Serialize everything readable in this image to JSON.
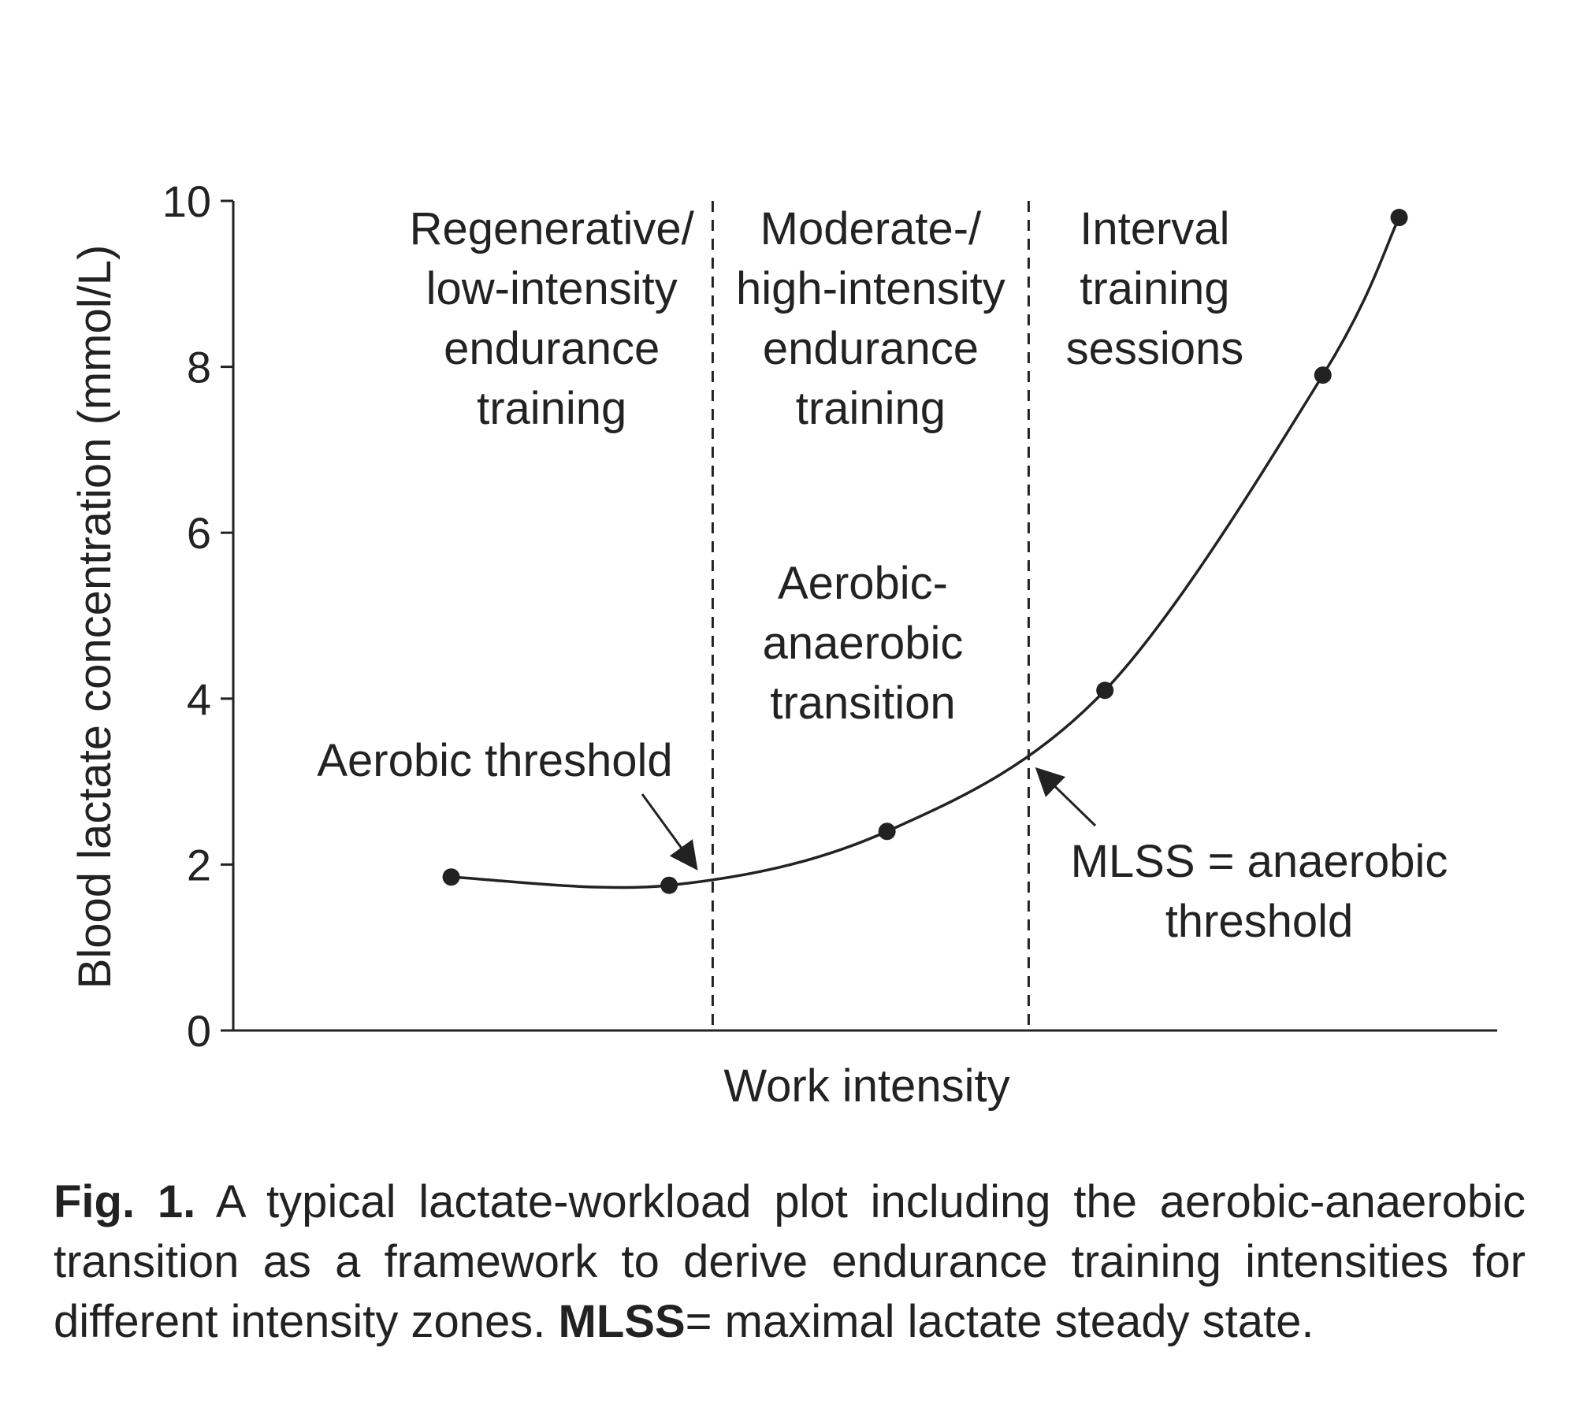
{
  "chart_data": {
    "type": "line",
    "title": "",
    "xlabel": "Work intensity",
    "ylabel": "Blood lactate concentration (mmol/L)",
    "ylim": [
      0,
      10
    ],
    "yticks": [
      "0",
      "2",
      "4",
      "6",
      "8",
      "10"
    ],
    "grid": false,
    "series": [
      {
        "x": [
          1.0,
          2.0,
          3.0,
          4.0,
          5.0,
          5.35
        ],
        "y": [
          1.85,
          1.75,
          2.4,
          4.1,
          7.9,
          9.8
        ]
      }
    ],
    "thresholds": [
      {
        "x": 2.2,
        "label": "Aerobic threshold"
      },
      {
        "x": 3.65,
        "label": "MLSS = anaerobic threshold"
      }
    ],
    "zones": [
      {
        "lines": [
          "Regenerative/",
          "low-intensity",
          "endurance",
          "training"
        ]
      },
      {
        "lines": [
          "Moderate-/",
          "high-intensity",
          "endurance",
          "training"
        ]
      },
      {
        "lines": [
          "Interval",
          "training",
          "sessions"
        ]
      }
    ],
    "annotations": [
      {
        "lines": [
          "Aerobic threshold"
        ]
      },
      {
        "lines": [
          "Aerobic-",
          "anaerobic",
          "transition"
        ]
      },
      {
        "lines": [
          "MLSS = anaerobic",
          "threshold"
        ]
      }
    ]
  },
  "caption": {
    "label": "Fig. 1.",
    "text_before": "A typical lactate-workload plot including the aerobic-anaerobic transition as a framework to derive endurance training intensities for different intensity zones.",
    "abbrev": "MLSS",
    "text_after": "= maximal lactate steady state."
  }
}
